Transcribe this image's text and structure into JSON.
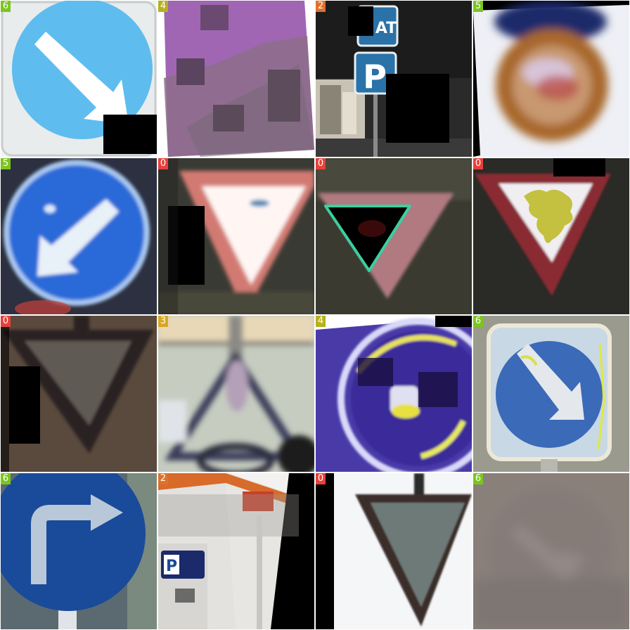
{
  "tiles": [
    {
      "label": "6",
      "color": "#7cc51e"
    },
    {
      "label": "4",
      "color": "#b6b01f"
    },
    {
      "label": "2",
      "color": "#e0712a"
    },
    {
      "label": "5",
      "color": "#7cc51e"
    },
    {
      "label": "5",
      "color": "#7cc51e"
    },
    {
      "label": "0",
      "color": "#e8403a"
    },
    {
      "label": "0",
      "color": "#e8403a"
    },
    {
      "label": "0",
      "color": "#e8403a"
    },
    {
      "label": "0",
      "color": "#e8403a"
    },
    {
      "label": "3",
      "color": "#d9a821"
    },
    {
      "label": "4",
      "color": "#b6b01f"
    },
    {
      "label": "6",
      "color": "#7cc51e"
    },
    {
      "label": "6",
      "color": "#7cc51e"
    },
    {
      "label": "2",
      "color": "#e0712a"
    },
    {
      "label": "0",
      "color": "#e8403a"
    },
    {
      "label": "6",
      "color": "#7cc51e"
    }
  ],
  "sign_text": {
    "tile3_top": "AT",
    "tile3_parking": "P",
    "tile14_parking": "P"
  }
}
